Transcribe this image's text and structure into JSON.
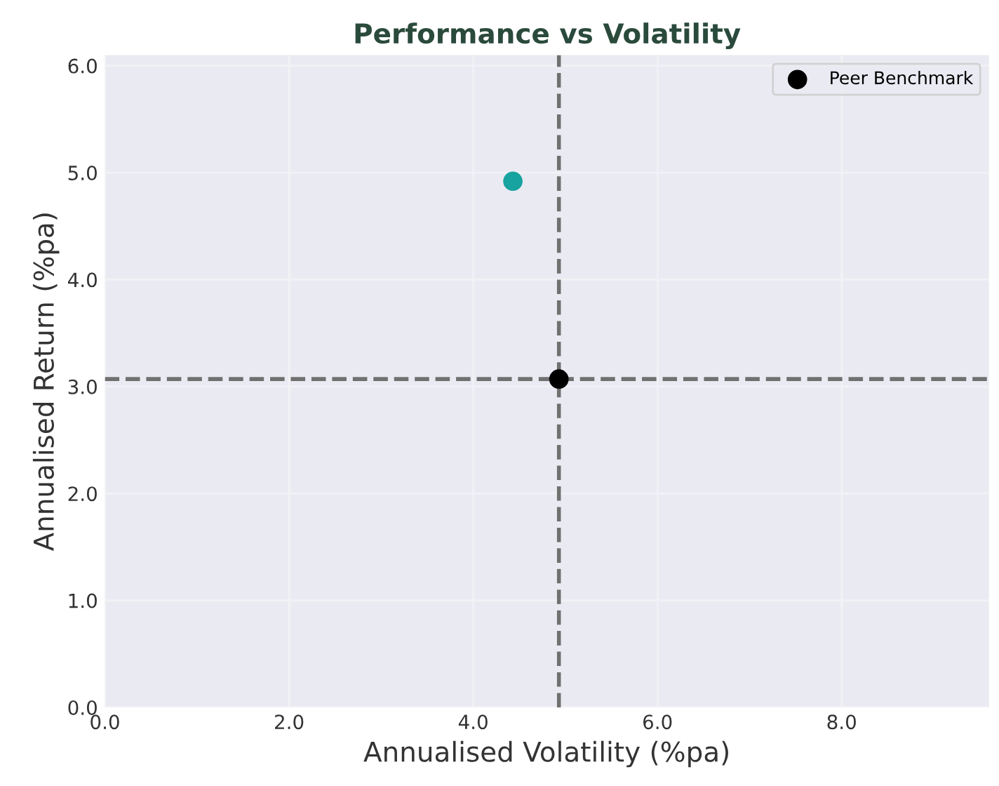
{
  "chart_data": {
    "type": "scatter",
    "title": "Performance vs Volatility",
    "xlabel": "Annualised Volatility (%pa)",
    "ylabel": "Annualised Return (%pa)",
    "series": [
      {
        "color": "#17a39f",
        "x": [
          4.43
        ],
        "values": [
          4.92
        ]
      },
      {
        "name": "Peer Benchmark",
        "color": "#000000",
        "x": [
          4.93
        ],
        "values": [
          3.07
        ]
      }
    ],
    "xlim": [
      0,
      9.6
    ],
    "ylim": [
      0,
      6.1
    ],
    "xticks": [
      {
        "value": 0,
        "label": "0.0"
      },
      {
        "value": 2,
        "label": "2.0"
      },
      {
        "value": 4,
        "label": "4.0"
      },
      {
        "value": 6,
        "label": "6.0"
      },
      {
        "value": 8,
        "label": "8.0"
      }
    ],
    "yticks": [
      {
        "value": 0,
        "label": "0.0"
      },
      {
        "value": 1,
        "label": "1.0"
      },
      {
        "value": 2,
        "label": "2.0"
      },
      {
        "value": 3,
        "label": "3.0"
      },
      {
        "value": 4,
        "label": "4.0"
      },
      {
        "value": 5,
        "label": "5.0"
      },
      {
        "value": 6,
        "label": "6.0"
      }
    ],
    "ref_lines": [
      {
        "axis": "x",
        "value": 4.93,
        "color": "#707070",
        "line_style": "dashed"
      },
      {
        "axis": "y",
        "value": 3.07,
        "color": "#707070",
        "line_style": "dashed"
      }
    ],
    "grid": true,
    "legend": "top right",
    "marker": "circle"
  }
}
